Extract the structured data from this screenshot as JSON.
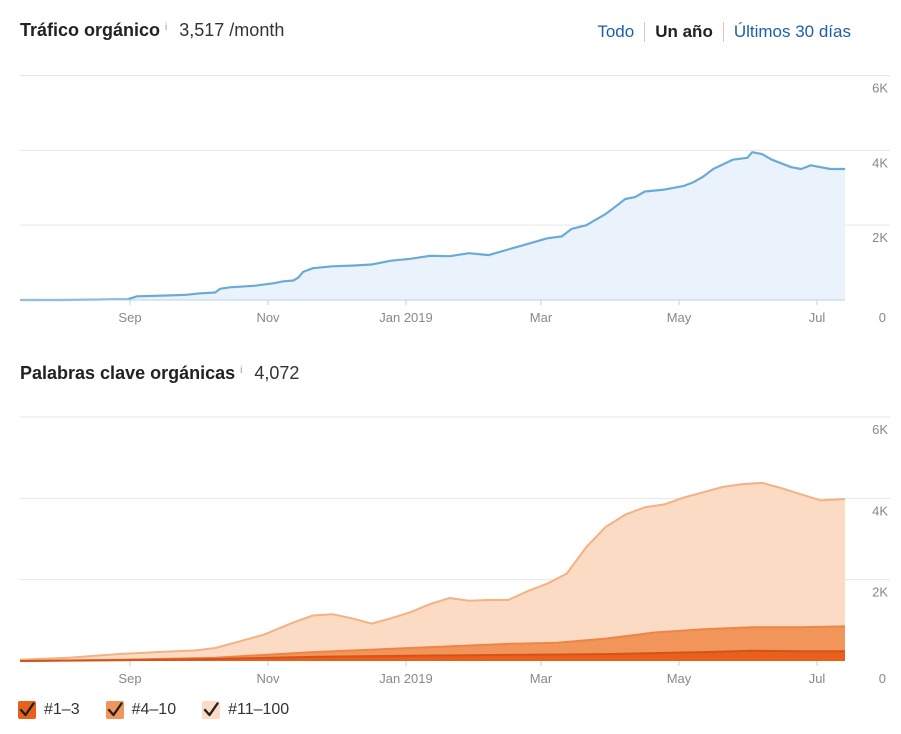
{
  "header1": {
    "title": "Tráfico orgánico",
    "info": "i",
    "metric": "3,517 /month"
  },
  "range_buttons": [
    {
      "label": "Todo",
      "active": false
    },
    {
      "label": "Un año",
      "active": true
    },
    {
      "label": "Últimos 30 días",
      "active": false
    }
  ],
  "header2": {
    "title": "Palabras clave orgánicas",
    "info": "i",
    "metric": "4,072"
  },
  "colors": {
    "traffic_line": "#6aabd6",
    "traffic_fill": "#eaf3fb",
    "kw_top3": "#e8601c",
    "kw_4_10": "#f2955a",
    "kw_11_100": "#fbdbc4",
    "kw_11_100_line": "#f4b184",
    "grid": "#e6e6e6",
    "axis_text": "#888888"
  },
  "legend": [
    {
      "label": "#1–3",
      "color": "#e8601c",
      "checked": true
    },
    {
      "label": "#4–10",
      "color": "#f2955a",
      "checked": true
    },
    {
      "label": "#11–100",
      "color": "#fbdbc4",
      "checked": true
    }
  ],
  "chart_data": [
    {
      "type": "area",
      "title": "Tráfico orgánico",
      "x_ticks": [
        "Sep",
        "Nov",
        "Jan 2019",
        "Mar",
        "May",
        "Jul"
      ],
      "y_ticks": [
        "6K",
        "4K",
        "2K",
        "0"
      ],
      "ylim": [
        0,
        6000
      ],
      "grid": true,
      "series": [
        {
          "x": [
            0,
            40,
            80,
            100,
            110,
            120,
            150,
            170,
            185,
            200,
            205,
            215,
            240,
            260,
            270,
            280,
            285,
            290,
            300,
            320,
            340,
            360,
            380,
            400,
            420,
            440,
            460,
            480,
            500,
            520,
            540,
            555,
            565,
            580,
            590,
            600,
            610,
            620,
            630,
            640,
            660,
            680,
            690,
            700,
            710,
            730,
            745,
            750,
            760,
            770,
            790,
            800,
            810,
            820,
            830,
            845
          ],
          "values": [
            0,
            0,
            10,
            20,
            20,
            100,
            120,
            140,
            180,
            200,
            300,
            340,
            380,
            450,
            500,
            520,
            600,
            750,
            850,
            900,
            920,
            950,
            1050,
            1100,
            1180,
            1170,
            1250,
            1200,
            1350,
            1500,
            1650,
            1700,
            1900,
            2000,
            2150,
            2300,
            2500,
            2700,
            2750,
            2900,
            2950,
            3050,
            3150,
            3300,
            3500,
            3750,
            3800,
            3950,
            3900,
            3750,
            3550,
            3500,
            3600,
            3550,
            3500,
            3500
          ]
        }
      ]
    },
    {
      "type": "area",
      "title": "Palabras clave orgánicas",
      "x_ticks": [
        "Sep",
        "Nov",
        "Jan 2019",
        "Mar",
        "May",
        "Jul"
      ],
      "y_ticks": [
        "6K",
        "4K",
        "2K",
        "0"
      ],
      "ylim": [
        0,
        6000
      ],
      "grid": true,
      "series": [
        {
          "name": "#1–3",
          "x": [
            0,
            100,
            200,
            300,
            400,
            500,
            600,
            700,
            750,
            800,
            845
          ],
          "values": [
            0,
            20,
            50,
            100,
            130,
            150,
            170,
            220,
            250,
            240,
            240
          ]
        },
        {
          "name": "#4–10",
          "x": [
            0,
            100,
            200,
            300,
            400,
            500,
            550,
            600,
            650,
            700,
            750,
            800,
            845
          ],
          "values": [
            0,
            30,
            80,
            220,
            320,
            420,
            450,
            550,
            700,
            780,
            830,
            830,
            850
          ]
        },
        {
          "name": "#11–100",
          "x": [
            0,
            50,
            100,
            150,
            180,
            200,
            220,
            250,
            280,
            300,
            320,
            340,
            360,
            380,
            400,
            420,
            440,
            460,
            480,
            500,
            520,
            540,
            560,
            580,
            600,
            620,
            640,
            660,
            680,
            700,
            720,
            740,
            760,
            780,
            800,
            820,
            845
          ],
          "values": [
            30,
            80,
            170,
            230,
            260,
            320,
            450,
            650,
            950,
            1120,
            1150,
            1050,
            920,
            1050,
            1200,
            1400,
            1550,
            1480,
            1500,
            1500,
            1720,
            1900,
            2150,
            2800,
            3300,
            3600,
            3780,
            3850,
            4020,
            4150,
            4280,
            4350,
            4380,
            4250,
            4100,
            3950,
            3980
          ]
        }
      ]
    }
  ]
}
